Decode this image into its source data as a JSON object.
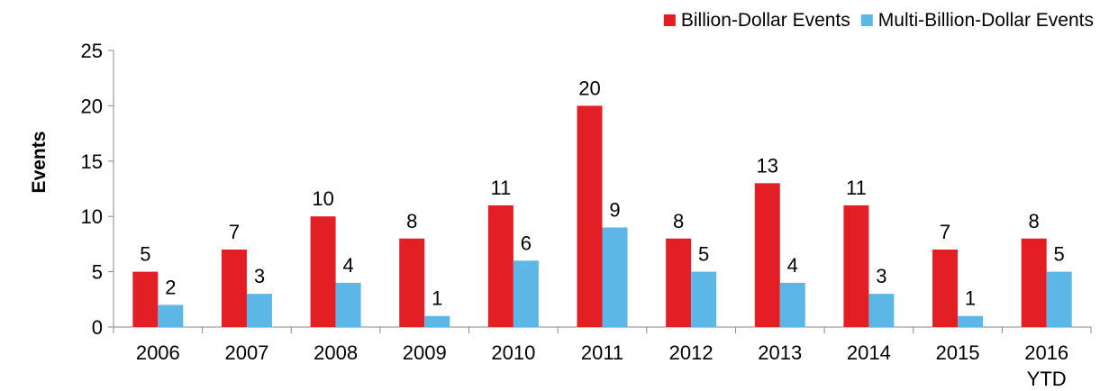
{
  "chart_data": {
    "type": "bar",
    "title": "",
    "xlabel": "",
    "ylabel": "Events",
    "ylim": [
      0,
      25
    ],
    "yticks": [
      0,
      5,
      10,
      15,
      20,
      25
    ],
    "grid": false,
    "legend_position": "top-right",
    "categories": [
      [
        "2006"
      ],
      [
        "2007"
      ],
      [
        "2008"
      ],
      [
        "2009"
      ],
      [
        "2010"
      ],
      [
        "2011"
      ],
      [
        "2012"
      ],
      [
        "2013"
      ],
      [
        "2014"
      ],
      [
        "2015"
      ],
      [
        "2016",
        "YTD"
      ]
    ],
    "series": [
      {
        "name": "Billion-Dollar Events",
        "color": "#e31e24",
        "values": [
          5,
          7,
          10,
          8,
          11,
          20,
          8,
          13,
          11,
          7,
          8
        ]
      },
      {
        "name": "Multi-Billion-Dollar Events",
        "color": "#5db7e6",
        "values": [
          2,
          3,
          4,
          1,
          6,
          9,
          5,
          4,
          3,
          1,
          5
        ]
      }
    ]
  }
}
